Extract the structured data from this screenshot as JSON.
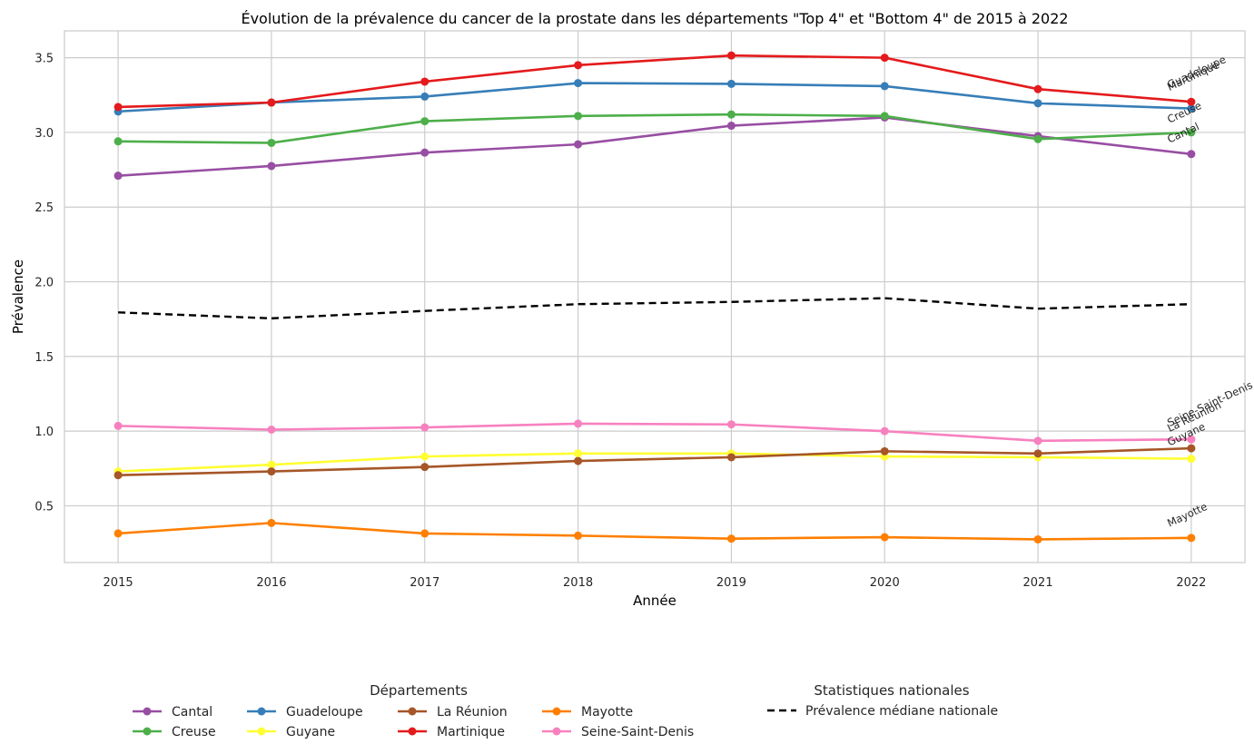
{
  "chart_data": {
    "type": "line",
    "title": "Évolution de la prévalence du cancer de la prostate dans les départements \"Top 4\" et \"Bottom 4\" de 2015 à 2022",
    "xlabel": "Année",
    "ylabel": "Prévalence",
    "x": [
      2015,
      2016,
      2017,
      2018,
      2019,
      2020,
      2021,
      2022
    ],
    "xlim": [
      2014.65,
      2022.35
    ],
    "ylim": [
      0.12,
      3.68
    ],
    "yticks": [
      "0.5",
      "1.0",
      "1.5",
      "2.0",
      "2.5",
      "3.0",
      "3.5"
    ],
    "ytick_values": [
      0.5,
      1.0,
      1.5,
      2.0,
      2.5,
      3.0,
      3.5
    ],
    "grid": true,
    "series": [
      {
        "name": "Cantal",
        "color": "#984ea3",
        "values": [
          2.71,
          2.775,
          2.865,
          2.92,
          3.045,
          3.1,
          2.975,
          2.855
        ]
      },
      {
        "name": "Creuse",
        "color": "#4daf4a",
        "values": [
          2.94,
          2.93,
          3.075,
          3.11,
          3.12,
          3.11,
          2.955,
          3.0
        ]
      },
      {
        "name": "Guadeloupe",
        "color": "#377eb8",
        "values": [
          3.14,
          3.2,
          3.24,
          3.33,
          3.325,
          3.31,
          3.195,
          3.16
        ]
      },
      {
        "name": "Guyane",
        "color": "#ffff33",
        "values": [
          0.73,
          0.775,
          0.83,
          0.85,
          0.85,
          0.83,
          0.825,
          0.815
        ]
      },
      {
        "name": "La Réunion",
        "color": "#a65628",
        "values": [
          0.705,
          0.73,
          0.76,
          0.8,
          0.825,
          0.865,
          0.85,
          0.885
        ]
      },
      {
        "name": "Martinique",
        "color": "#e41a1c",
        "values": [
          3.17,
          3.2,
          3.34,
          3.45,
          3.515,
          3.5,
          3.29,
          3.205
        ]
      },
      {
        "name": "Mayotte",
        "color": "#ff7f00",
        "values": [
          0.315,
          0.385,
          0.315,
          0.3,
          0.28,
          0.29,
          0.275,
          0.285
        ]
      },
      {
        "name": "Seine-Saint-Denis",
        "color": "#f781bf",
        "values": [
          1.035,
          1.01,
          1.025,
          1.05,
          1.045,
          1.0,
          0.935,
          0.945
        ]
      }
    ],
    "median": {
      "name": "Prévalence médiane nationale",
      "color": "#000000",
      "values": [
        1.795,
        1.755,
        1.805,
        1.85,
        1.865,
        1.89,
        1.82,
        1.85
      ]
    },
    "end_labels": [
      "Martinique",
      "Guadeloupe",
      "Creuse",
      "Cantal",
      "Seine-Saint-Denis",
      "La Réunion",
      "Guyane",
      "Mayotte"
    ],
    "legend": {
      "placement": "bottom",
      "group1_title": "Départements",
      "group2_title": "Statistiques nationales"
    }
  }
}
